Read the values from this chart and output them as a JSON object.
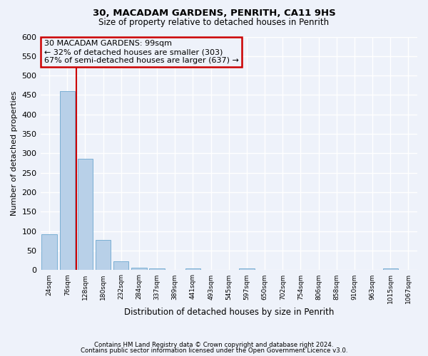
{
  "title1": "30, MACADAM GARDENS, PENRITH, CA11 9HS",
  "title2": "Size of property relative to detached houses in Penrith",
  "xlabel": "Distribution of detached houses by size in Penrith",
  "ylabel": "Number of detached properties",
  "annotation_line1": "30 MACADAM GARDENS: 99sqm",
  "annotation_line2": "← 32% of detached houses are smaller (303)",
  "annotation_line3": "67% of semi-detached houses are larger (637) →",
  "bar_color": "#b8d0e8",
  "bar_edge_color": "#7aafd4",
  "vline_color": "#cc0000",
  "annotation_box_edge": "#cc0000",
  "background_color": "#eef2fa",
  "grid_color": "#ffffff",
  "categories": [
    "24sqm",
    "76sqm",
    "128sqm",
    "180sqm",
    "232sqm",
    "284sqm",
    "337sqm",
    "389sqm",
    "441sqm",
    "493sqm",
    "545sqm",
    "597sqm",
    "650sqm",
    "702sqm",
    "754sqm",
    "806sqm",
    "858sqm",
    "910sqm",
    "963sqm",
    "1015sqm",
    "1067sqm"
  ],
  "values": [
    93,
    460,
    287,
    77,
    22,
    6,
    5,
    0,
    5,
    0,
    0,
    5,
    0,
    0,
    0,
    0,
    0,
    0,
    0,
    5,
    0
  ],
  "vline_x": 1.5,
  "ylim": [
    0,
    600
  ],
  "yticks": [
    0,
    50,
    100,
    150,
    200,
    250,
    300,
    350,
    400,
    450,
    500,
    550,
    600
  ],
  "footnote1": "Contains HM Land Registry data © Crown copyright and database right 2024.",
  "footnote2": "Contains public sector information licensed under the Open Government Licence v3.0."
}
